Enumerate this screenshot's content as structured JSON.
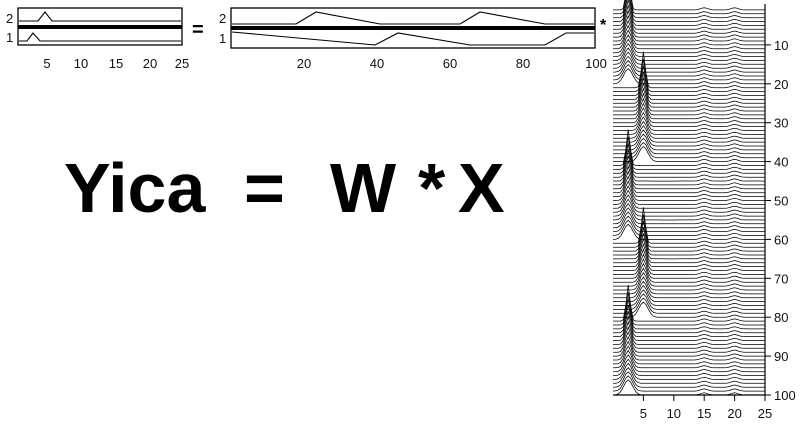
{
  "equation": {
    "lhs": "Yica",
    "equals": "=",
    "w": "W",
    "times": "*",
    "x": "X"
  },
  "panel_ops": {
    "equals": "=",
    "star": "*"
  },
  "chart_data": [
    {
      "type": "line",
      "panel": "Yica",
      "series": [
        {
          "row_label": "2",
          "peak_at": 5
        },
        {
          "row_label": "1",
          "peak_at": 2.5
        }
      ],
      "xticks": [
        "5",
        "10",
        "15",
        "20",
        "25"
      ],
      "xlim": [
        0,
        25
      ]
    },
    {
      "type": "line",
      "panel": "W",
      "series": [
        {
          "row_label": "2",
          "x": [
            0,
            18,
            25,
            43,
            48,
            62,
            70,
            87,
            93,
            100
          ],
          "y": [
            0.05,
            0.05,
            0.75,
            0.3,
            0.05,
            0.05,
            0.75,
            0.3,
            0.05,
            0.05
          ]
        },
        {
          "row_label": "1",
          "x": [
            0,
            40,
            48,
            65,
            70,
            88,
            93,
            100
          ],
          "y": [
            0.75,
            0.3,
            0.05,
            0.05,
            0.75,
            0.3,
            0.05,
            0.05
          ]
        }
      ],
      "xticks": [
        "20",
        "40",
        "60",
        "80",
        "100"
      ],
      "xlim": [
        0,
        100
      ]
    },
    {
      "type": "line",
      "panel": "X",
      "x_ticks": [
        "5",
        "10",
        "15",
        "20",
        "25"
      ],
      "y_ticks": [
        "10",
        "20",
        "30",
        "40",
        "50",
        "60",
        "70",
        "80",
        "90",
        "100"
      ],
      "xlim": [
        0,
        25
      ],
      "ylim": [
        0,
        100
      ],
      "n_traces": 100,
      "peak_groups": [
        {
          "from": 1,
          "to": 20,
          "peak_at": 2.5
        },
        {
          "from": 21,
          "to": 40,
          "peak_at": 5
        },
        {
          "from": 41,
          "to": 60,
          "peak_at": 2.5
        },
        {
          "from": 61,
          "to": 80,
          "peak_at": 5
        },
        {
          "from": 81,
          "to": 100,
          "peak_at": 2.5
        }
      ],
      "secondary_peaks_at": [
        15,
        20
      ]
    }
  ]
}
